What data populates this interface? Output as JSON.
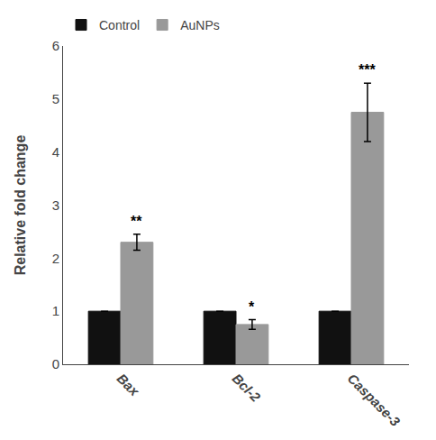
{
  "chart_data": {
    "type": "bar",
    "categories": [
      "Bax",
      "Bcl-2",
      "Caspase-3"
    ],
    "series": [
      {
        "name": "Control",
        "color": "#111111",
        "values": [
          1.0,
          1.0,
          1.0
        ],
        "errors": [
          0.0,
          0.0,
          0.0
        ]
      },
      {
        "name": "AuNPs",
        "color": "#999999",
        "values": [
          2.3,
          0.75,
          4.75
        ],
        "errors": [
          0.15,
          0.09,
          0.55
        ],
        "annotations": [
          "**",
          "*",
          "***"
        ]
      }
    ],
    "ylabel": "Relative fold change",
    "ylim": [
      0,
      6
    ],
    "yticks": [
      0,
      1,
      2,
      3,
      4,
      5,
      6
    ],
    "grid": false,
    "legend": "upper left"
  }
}
